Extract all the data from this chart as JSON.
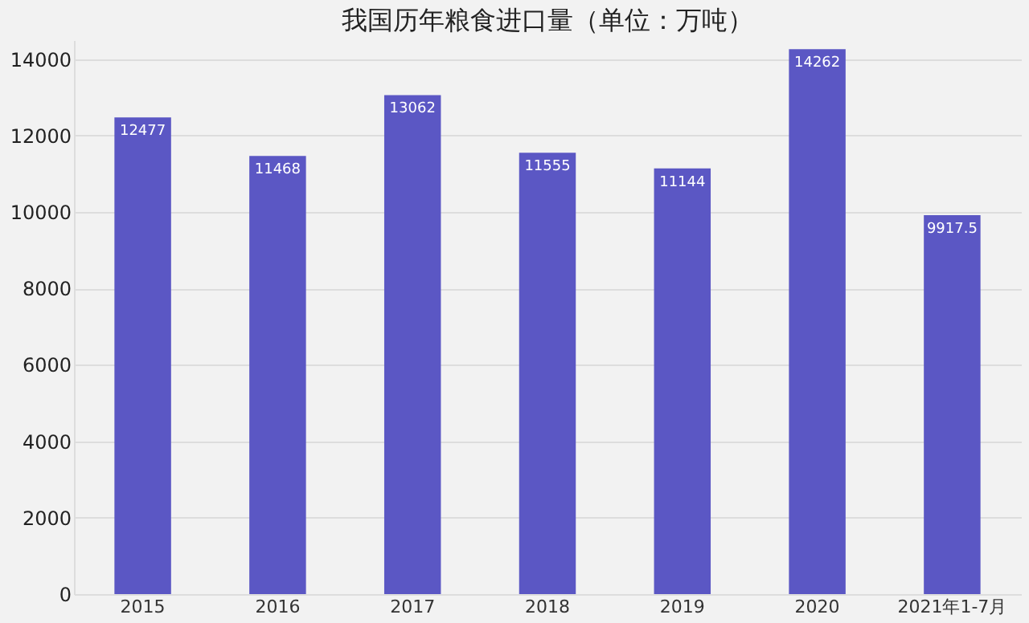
{
  "chart_data": {
    "type": "bar",
    "title": "我国历年粮食进口量（单位：万吨）",
    "categories": [
      "2015",
      "2016",
      "2017",
      "2018",
      "2019",
      "2020",
      "2021年1-7月"
    ],
    "values": [
      12477,
      11468,
      13062,
      11555,
      11144,
      14262,
      9917.5
    ],
    "color": "#5b57c4",
    "ylim": [
      0,
      14500
    ],
    "yticks": [
      0,
      2000,
      4000,
      6000,
      8000,
      10000,
      12000,
      14000
    ],
    "grid": "y",
    "data_labels": true
  }
}
